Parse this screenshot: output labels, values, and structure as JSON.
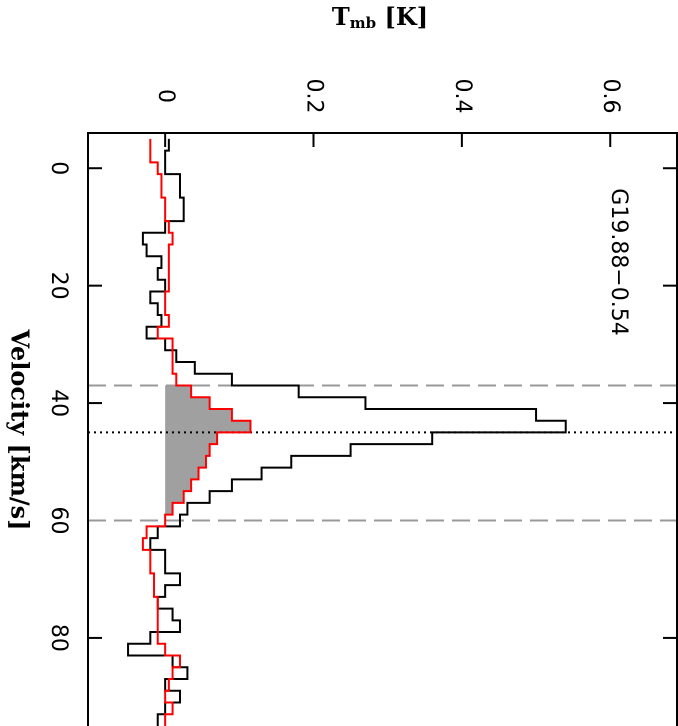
{
  "chart_data": {
    "type": "step",
    "title": "G19.88−0.54",
    "xlabel": "Velocity [km/s]",
    "ylabel": [
      "T",
      "mb",
      " [K]"
    ],
    "x": [
      -4,
      -2,
      0,
      2,
      4,
      6,
      8,
      10,
      12,
      14,
      16,
      18,
      20,
      22,
      24,
      26,
      28,
      30,
      32,
      34,
      36,
      38,
      40,
      42,
      44,
      46,
      48,
      50,
      52,
      54,
      56,
      58,
      60,
      62,
      64,
      66,
      68,
      70,
      72,
      74,
      76,
      78,
      80,
      82,
      84,
      86,
      88,
      90,
      92,
      94
    ],
    "series": [
      {
        "color": "#000000",
        "values": [
          0.005,
          0,
          0,
          0.02,
          0.02,
          0.025,
          0.025,
          0,
          -0.03,
          -0.025,
          -0.005,
          -0.01,
          0,
          -0.02,
          -0.01,
          -0.005,
          -0.025,
          0,
          0.015,
          0.04,
          0.09,
          0.18,
          0.27,
          0.5,
          0.54,
          0.36,
          0.25,
          0.17,
          0.13,
          0.09,
          0.06,
          0.03,
          0.02,
          -0.01,
          -0.02,
          0,
          0,
          0.02,
          0,
          -0.01,
          0.01,
          0.02,
          -0.02,
          -0.05,
          0.01,
          0.03,
          0,
          0.02,
          0,
          -0.01
        ]
      },
      {
        "color": "#ff0000",
        "values": [
          -0.02,
          -0.02,
          -0.01,
          -0.005,
          -0.005,
          0,
          0,
          0.005,
          0.01,
          0.005,
          0.005,
          0.005,
          0.005,
          0,
          0,
          0.005,
          -0.01,
          0.01,
          0.01,
          0.01,
          0.015,
          0.035,
          0.06,
          0.09,
          0.115,
          0.07,
          0.06,
          0.055,
          0.045,
          0.035,
          0.025,
          0.01,
          0,
          -0.025,
          -0.03,
          -0.02,
          -0.02,
          -0.015,
          -0.015,
          -0.01,
          -0.01,
          -0.01,
          -0.01,
          0,
          0.02,
          0.01,
          0.005,
          0,
          0.01,
          0
        ]
      }
    ],
    "bin_width": 2,
    "fill_color": "#a0a0a0",
    "dashed_lines": [
      37,
      60
    ],
    "dotted_line": 45,
    "xlim": [
      -6,
      95
    ],
    "xticks": [
      0,
      20,
      40,
      60,
      80
    ],
    "ylim": [
      -0.104,
      0.69
    ],
    "yticks": [
      0,
      0.2,
      0.4,
      0.6
    ]
  }
}
